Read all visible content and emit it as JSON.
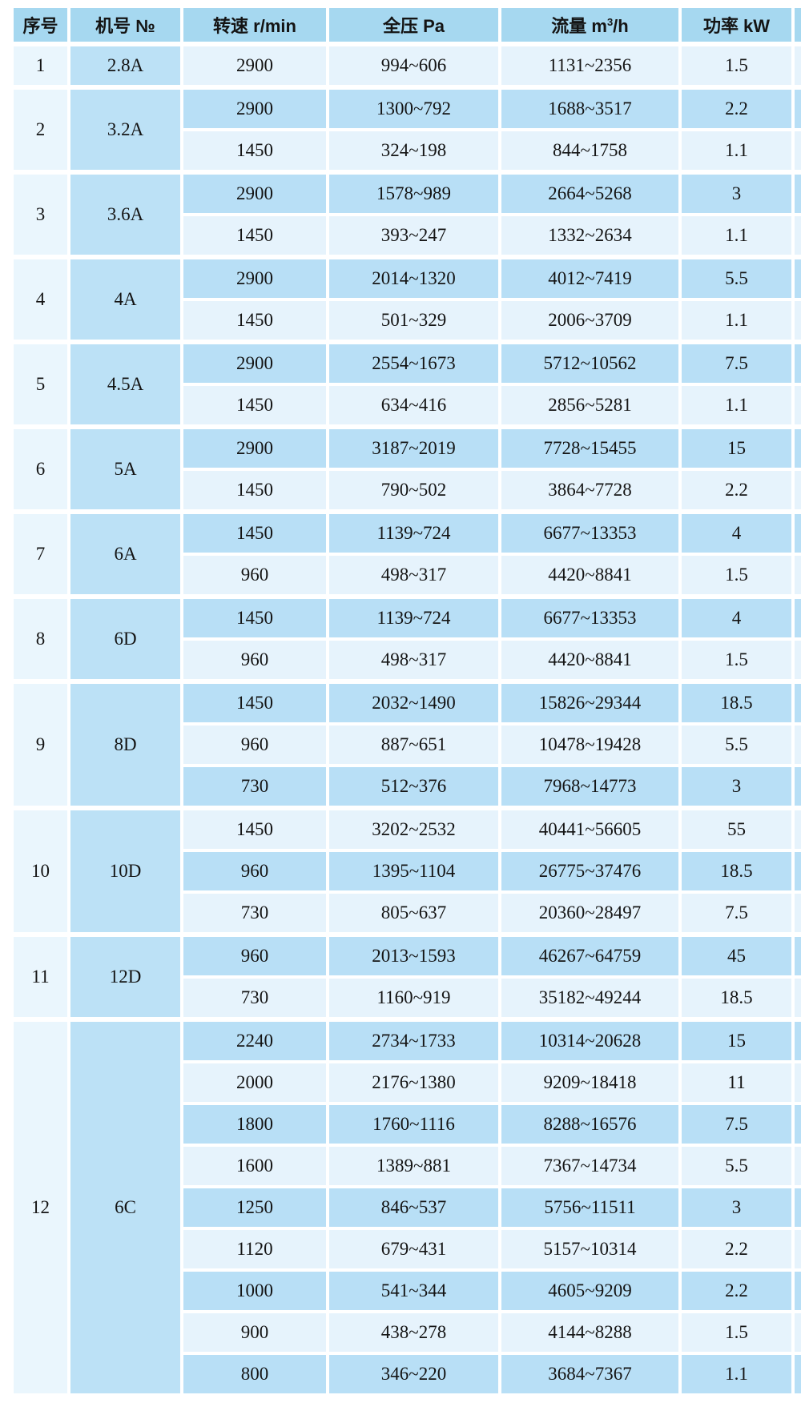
{
  "table": {
    "columns": [
      {
        "label": "序号"
      },
      {
        "label": "机号 №"
      },
      {
        "label": "转速 r/min"
      },
      {
        "label": "全压 Pa"
      },
      {
        "label_prefix": "流量 m",
        "label_sup": "3",
        "label_suffix": "/h"
      },
      {
        "label": "功率 kW"
      }
    ],
    "colors": {
      "header_bg": "#a6d8f0",
      "seq_col_bg": "#eaf6fd",
      "model_col_bg": "#bce1f6",
      "row_dark_bg": "#b8dff6",
      "row_pale_bg": "#e6f3fc",
      "grid_line": "#ffffff",
      "text": "#141414"
    },
    "groups": [
      {
        "seq": "1",
        "model": "2.8A",
        "rows": [
          [
            "2900",
            "994~606",
            "1131~2356",
            "1.5"
          ]
        ]
      },
      {
        "seq": "2",
        "model": "3.2A",
        "rows": [
          [
            "2900",
            "1300~792",
            "1688~3517",
            "2.2"
          ],
          [
            "1450",
            "324~198",
            "844~1758",
            "1.1"
          ]
        ]
      },
      {
        "seq": "3",
        "model": "3.6A",
        "rows": [
          [
            "2900",
            "1578~989",
            "2664~5268",
            "3"
          ],
          [
            "1450",
            "393~247",
            "1332~2634",
            "1.1"
          ]
        ]
      },
      {
        "seq": "4",
        "model": "4A",
        "rows": [
          [
            "2900",
            "2014~1320",
            "4012~7419",
            "5.5"
          ],
          [
            "1450",
            "501~329",
            "2006~3709",
            "1.1"
          ]
        ]
      },
      {
        "seq": "5",
        "model": "4.5A",
        "rows": [
          [
            "2900",
            "2554~1673",
            "5712~10562",
            "7.5"
          ],
          [
            "1450",
            "634~416",
            "2856~5281",
            "1.1"
          ]
        ]
      },
      {
        "seq": "6",
        "model": "5A",
        "rows": [
          [
            "2900",
            "3187~2019",
            "7728~15455",
            "15"
          ],
          [
            "1450",
            "790~502",
            "3864~7728",
            "2.2"
          ]
        ]
      },
      {
        "seq": "7",
        "model": "6A",
        "rows": [
          [
            "1450",
            "1139~724",
            "6677~13353",
            "4"
          ],
          [
            "960",
            "498~317",
            "4420~8841",
            "1.5"
          ]
        ]
      },
      {
        "seq": "8",
        "model": "6D",
        "rows": [
          [
            "1450",
            "1139~724",
            "6677~13353",
            "4"
          ],
          [
            "960",
            "498~317",
            "4420~8841",
            "1.5"
          ]
        ]
      },
      {
        "seq": "9",
        "model": "8D",
        "rows": [
          [
            "1450",
            "2032~1490",
            "15826~29344",
            "18.5"
          ],
          [
            "960",
            "887~651",
            "10478~19428",
            "5.5"
          ],
          [
            "730",
            "512~376",
            "7968~14773",
            "3"
          ]
        ]
      },
      {
        "seq": "10",
        "model": "10D",
        "rows": [
          [
            "1450",
            "3202~2532",
            "40441~56605",
            "55"
          ],
          [
            "960",
            "1395~1104",
            "26775~37476",
            "18.5"
          ],
          [
            "730",
            "805~637",
            "20360~28497",
            "7.5"
          ]
        ]
      },
      {
        "seq": "11",
        "model": "12D",
        "rows": [
          [
            "960",
            "2013~1593",
            "46267~64759",
            "45"
          ],
          [
            "730",
            "1160~919",
            "35182~49244",
            "18.5"
          ]
        ]
      },
      {
        "seq": "12",
        "model": "6C",
        "rows": [
          [
            "2240",
            "2734~1733",
            "10314~20628",
            "15"
          ],
          [
            "2000",
            "2176~1380",
            "9209~18418",
            "11"
          ],
          [
            "1800",
            "1760~1116",
            "8288~16576",
            "7.5"
          ],
          [
            "1600",
            "1389~881",
            "7367~14734",
            "5.5"
          ],
          [
            "1250",
            "846~537",
            "5756~11511",
            "3"
          ],
          [
            "1120",
            "679~431",
            "5157~10314",
            "2.2"
          ],
          [
            "1000",
            "541~344",
            "4605~9209",
            "2.2"
          ],
          [
            "900",
            "438~278",
            "4144~8288",
            "1.5"
          ],
          [
            "800",
            "346~220",
            "3684~7367",
            "1.1"
          ]
        ]
      }
    ]
  }
}
